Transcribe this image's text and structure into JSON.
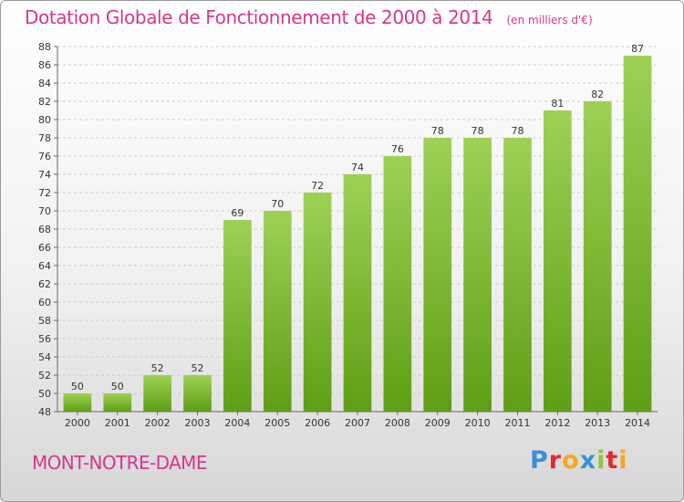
{
  "chart_data": {
    "type": "bar",
    "title": "Dotation Globale de Fonctionnement de 2000 à 2014",
    "unit_label": "(en milliers d'€)",
    "categories": [
      "2000",
      "2001",
      "2002",
      "2003",
      "2004",
      "2005",
      "2006",
      "2007",
      "2008",
      "2009",
      "2010",
      "2011",
      "2012",
      "2013",
      "2014"
    ],
    "values": [
      50,
      50,
      52,
      52,
      69,
      70,
      72,
      74,
      76,
      78,
      78,
      78,
      81,
      82,
      87
    ],
    "ylim": [
      48,
      88
    ],
    "yticks": [
      48,
      50,
      52,
      54,
      56,
      58,
      60,
      62,
      64,
      66,
      68,
      70,
      72,
      74,
      76,
      78,
      80,
      82,
      84,
      86,
      88
    ],
    "grid": true,
    "bar_color": "#8cc63f"
  },
  "footer": {
    "commune": "MONT-NOTRE-DAME",
    "logo_text": "Proxiti"
  },
  "colors": {
    "title": "#d6378a",
    "logo": [
      "#3a8fd6",
      "#e8262b",
      "#f5a623",
      "#3a8fd6",
      "#8cc63f",
      "#e8262b",
      "#f5a623"
    ]
  }
}
